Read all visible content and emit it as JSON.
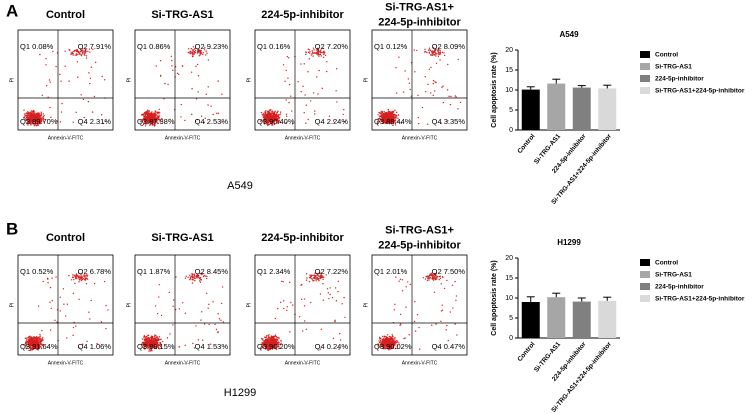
{
  "flow_axes": {
    "x_label": "Annexin-V-FITC",
    "y_label": "PI"
  },
  "panels": [
    {
      "letter": "A",
      "cell_line": "A549",
      "plots": [
        {
          "title": [
            "Control"
          ],
          "quadrants": [
            "Q1 0.08%",
            "Q2 7.91%",
            "Q3 89.70%",
            "Q4 2.31%"
          ]
        },
        {
          "title": [
            "Si-TRG-AS1"
          ],
          "quadrants": [
            "Q1 0.86%",
            "Q2 9.23%",
            "Q3 87.38%",
            "Q4 2.53%"
          ]
        },
        {
          "title": [
            "224-5p-inhibitor"
          ],
          "quadrants": [
            "Q1 0.16%",
            "Q2 7.20%",
            "Q3 90.40%",
            "Q4 2.24%"
          ]
        },
        {
          "title": [
            "Si-TRG-AS1+",
            "224-5p-inhibitor"
          ],
          "quadrants": [
            "Q1 0.12%",
            "Q2 8.09%",
            "Q3 88.44%",
            "Q4 3.35%"
          ]
        }
      ]
    },
    {
      "letter": "B",
      "cell_line": "H1299",
      "plots": [
        {
          "title": [
            "Control"
          ],
          "quadrants": [
            "Q1 0.52%",
            "Q2 6.78%",
            "Q3 91.64%",
            "Q4 1.06%"
          ]
        },
        {
          "title": [
            "Si-TRG-AS1"
          ],
          "quadrants": [
            "Q1 1.87%",
            "Q2 8.45%",
            "Q3 88.15%",
            "Q4 1.53%"
          ]
        },
        {
          "title": [
            "224-5p-inhibitor"
          ],
          "quadrants": [
            "Q1 2.34%",
            "Q2 7.22%",
            "Q3 90.20%",
            "Q4 0.24%"
          ]
        },
        {
          "title": [
            "Si-TRG-AS1+",
            "224-5p-inhibitor"
          ],
          "quadrants": [
            "Q1 2.01%",
            "Q2 7.50%",
            "Q3 90.02%",
            "Q4 0.47%"
          ]
        }
      ]
    }
  ],
  "chart_data": [
    {
      "type": "bar",
      "title": "A549",
      "y_label": "Cell apoptosis rate (%)",
      "categories": [
        "Control",
        "Si-TRG-AS1",
        "224-5p-inhibitor",
        "Si-TRG-AS1+224-5p-inhibitor"
      ],
      "values": [
        10.1,
        11.6,
        10.6,
        10.4
      ],
      "errors": [
        0.7,
        1.1,
        0.5,
        0.8
      ],
      "colors": [
        "#000000",
        "#a6a6a6",
        "#808080",
        "#d9d9d9"
      ],
      "ylim": [
        0,
        20
      ],
      "yticks": [
        0,
        5,
        10,
        15,
        20
      ]
    },
    {
      "type": "bar",
      "title": "H1299",
      "y_label": "Cell apoptosis rate (%)",
      "categories": [
        "Control",
        "Si-TRG-AS1",
        "224-5p-inhibitor",
        "Si-TRG-AS1+224-5p-inhibitor"
      ],
      "values": [
        9.0,
        10.2,
        9.1,
        9.3
      ],
      "errors": [
        1.3,
        1.0,
        0.9,
        0.9
      ],
      "colors": [
        "#000000",
        "#a6a6a6",
        "#808080",
        "#d9d9d9"
      ],
      "ylim": [
        0,
        20
      ],
      "yticks": [
        0,
        5,
        10,
        15,
        20
      ]
    }
  ]
}
